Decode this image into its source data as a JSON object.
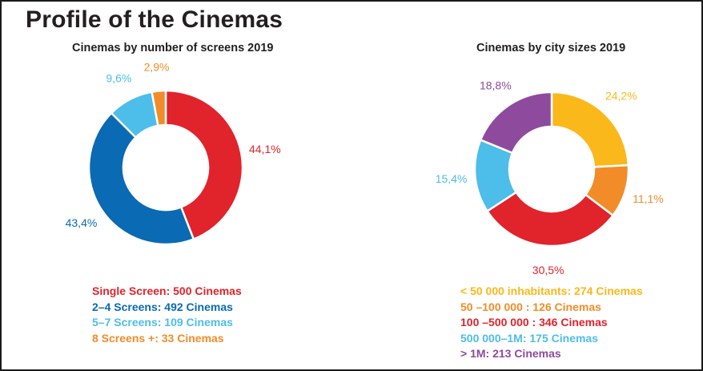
{
  "title": "Profile of the Cinemas",
  "chart_data": [
    {
      "type": "pie",
      "variant": "donut",
      "title": "Cinemas by number of screens 2019",
      "categories": [
        "Single Screen",
        "2–4 Screens",
        "5–7 Screens",
        "8 Screens +"
      ],
      "values": [
        44.1,
        43.4,
        9.6,
        2.9
      ],
      "value_labels": [
        "44,1%",
        "43,4%",
        "9,6%",
        "2,9%"
      ],
      "colors": [
        "#e1232b",
        "#0a6ab3",
        "#4dbde9",
        "#f28c28"
      ],
      "legend": [
        "Single Screen: 500 Cinemas",
        "2–4 Screens: 492 Cinemas",
        "5–7 Screens: 109 Cinemas",
        "8 Screens +: 33 Cinemas"
      ],
      "legend_placement": "bottom-left"
    },
    {
      "type": "pie",
      "variant": "donut",
      "title": "Cinemas by city sizes 2019",
      "categories": [
        "< 50 000 inhabitants",
        "50 –100 000",
        "100 –500 000",
        "500 000–1M",
        "> 1M"
      ],
      "values": [
        24.2,
        11.1,
        30.5,
        15.4,
        18.8
      ],
      "value_labels": [
        "24,2%",
        "11,1%",
        "30,5%",
        "15,4%",
        "18,8%"
      ],
      "colors": [
        "#fbb81a",
        "#f28c28",
        "#e1232b",
        "#4dbde9",
        "#8e4a9d"
      ],
      "legend": [
        "< 50 000 inhabitants: 274 Cinemas",
        "50 –100 000 : 126 Cinemas",
        "100 –500 000 : 346 Cinemas",
        "500 000–1M: 175 Cinemas",
        "> 1M: 213 Cinemas"
      ],
      "legend_placement": "bottom-left"
    }
  ]
}
